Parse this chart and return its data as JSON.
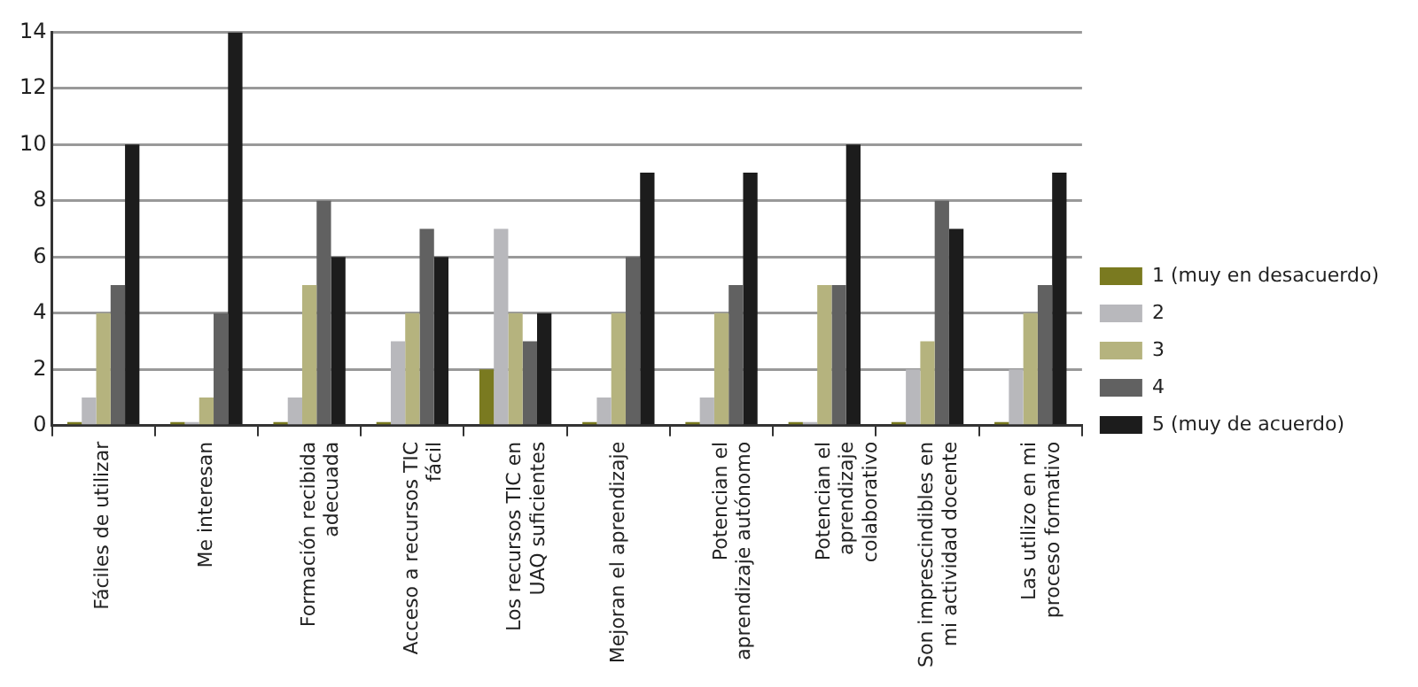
{
  "chart_data": {
    "type": "bar",
    "categories": [
      "Fáciles de utilizar",
      "Me interesan",
      "Formación recibida adecuada",
      "Acceso a recursos TIC fácil",
      "Los recursos TIC en UAQ suficientes",
      "Mejoran el aprendizaje",
      "Potencian el aprendizaje autónomo",
      "Potencian el aprendizaje colaborativo",
      "Son imprescindibles en mi actividad docente",
      "Las utilizo en mi proceso formativo"
    ],
    "series": [
      {
        "name": "1 (muy en desacuerdo)",
        "color": "#7a7a20",
        "values": [
          0,
          0,
          0,
          0,
          2,
          0,
          0,
          0,
          0,
          0
        ]
      },
      {
        "name": "2",
        "color": "#b8b8bc",
        "values": [
          1,
          0,
          1,
          3,
          7,
          1,
          1,
          0,
          2,
          2
        ]
      },
      {
        "name": "3",
        "color": "#b5b37e",
        "values": [
          4,
          1,
          5,
          4,
          4,
          4,
          4,
          5,
          3,
          4
        ]
      },
      {
        "name": "4",
        "color": "#616161",
        "values": [
          5,
          4,
          8,
          7,
          3,
          6,
          5,
          5,
          8,
          5
        ]
      },
      {
        "name": "5 (muy de acuerdo)",
        "color": "#1c1c1c",
        "values": [
          10,
          14,
          6,
          6,
          4,
          9,
          9,
          10,
          7,
          9
        ]
      }
    ],
    "ylim": [
      0,
      14
    ],
    "yticks": [
      0,
      2,
      4,
      6,
      8,
      10,
      12,
      14
    ],
    "grid": "y",
    "legend": "right"
  }
}
